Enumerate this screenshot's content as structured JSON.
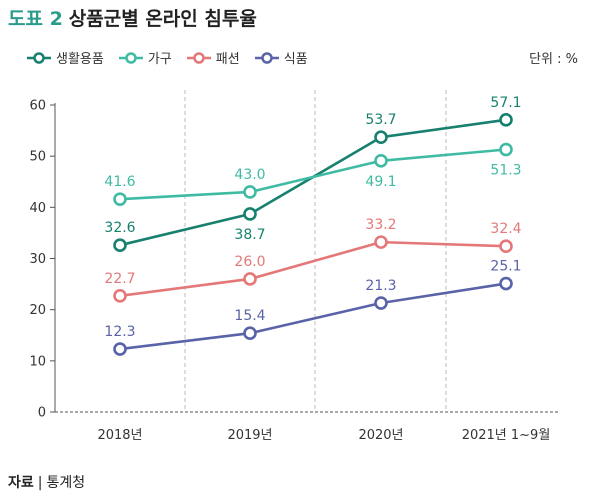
{
  "header": {
    "number": "도표 2",
    "title": "상품군별 온라인 침투율"
  },
  "unit": "단위 : %",
  "source": {
    "label": "자료",
    "text": "통계청"
  },
  "chart_data": {
    "type": "line",
    "title": "상품군별 온라인 침투율",
    "categories": [
      "2018년",
      "2019년",
      "2020년",
      "2021년 1~9월"
    ],
    "ylim": [
      0,
      60
    ],
    "yticks": [
      0,
      10,
      20,
      30,
      40,
      50,
      60
    ],
    "legend_position": "top-left",
    "series": [
      {
        "name": "생활용품",
        "color": "#17806f",
        "values": [
          32.6,
          38.7,
          53.7,
          57.1
        ]
      },
      {
        "name": "가구",
        "color": "#3fbba4",
        "values": [
          41.6,
          43.0,
          49.1,
          51.3
        ]
      },
      {
        "name": "패션",
        "color": "#e47878",
        "values": [
          22.7,
          26.0,
          33.2,
          32.4
        ]
      },
      {
        "name": "식품",
        "color": "#5a63a8",
        "values": [
          12.3,
          15.4,
          21.3,
          25.1
        ]
      }
    ]
  }
}
